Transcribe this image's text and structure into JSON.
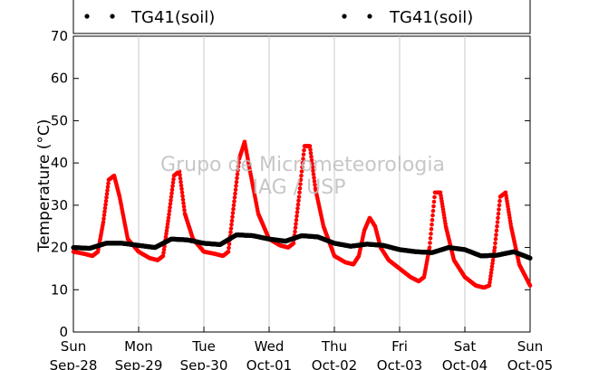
{
  "chart_data": {
    "type": "scatter",
    "ylabel": "Temperature (°C)",
    "ylim": [
      0,
      70
    ],
    "yticks": [
      0,
      10,
      20,
      30,
      40,
      50,
      60,
      70
    ],
    "xlim": [
      "2014-09-28T00:00",
      "2014-10-05T00:00"
    ],
    "xticks": [
      {
        "day": "Sun",
        "date": "Sep-28"
      },
      {
        "day": "Mon",
        "date": "Sep-29"
      },
      {
        "day": "Tue",
        "date": "Sep-30"
      },
      {
        "day": "Wed",
        "date": "Oct-01"
      },
      {
        "day": "Thu",
        "date": "Oct-02"
      },
      {
        "day": "Fri",
        "date": "Oct-03"
      },
      {
        "day": "Sat",
        "date": "Oct-04"
      },
      {
        "day": "Sun",
        "date": "Oct-05"
      }
    ],
    "grid": "vertical",
    "legend": [
      {
        "label": "TG41(soil)",
        "color": "#000000"
      },
      {
        "label": "TG41(soil)",
        "color": "#000000"
      }
    ],
    "watermark": [
      "Grupo de Micrometeorologia",
      "IAG / USP"
    ],
    "series": [
      {
        "color": "#ff0000",
        "x": [
          "2014-09-28T00:00",
          "2014-09-28T04:00",
          "2014-09-28T07:00",
          "2014-09-28T09:00",
          "2014-09-28T11:00",
          "2014-09-28T13:00",
          "2014-09-28T15:00",
          "2014-09-28T17:00",
          "2014-09-28T20:00",
          "2014-09-29T00:00",
          "2014-09-29T04:00",
          "2014-09-29T07:00",
          "2014-09-29T09:00",
          "2014-09-29T11:00",
          "2014-09-29T13:00",
          "2014-09-29T15:00",
          "2014-09-29T17:00",
          "2014-09-29T20:00",
          "2014-09-30T00:00",
          "2014-09-30T04:00",
          "2014-09-30T07:00",
          "2014-09-30T09:00",
          "2014-09-30T11:00",
          "2014-09-30T13:00",
          "2014-09-30T15:00",
          "2014-09-30T17:00",
          "2014-09-30T20:00",
          "2014-10-01T00:00",
          "2014-10-01T04:00",
          "2014-10-01T07:00",
          "2014-10-01T09:00",
          "2014-10-01T11:00",
          "2014-10-01T13:00",
          "2014-10-01T15:00",
          "2014-10-01T17:00",
          "2014-10-01T20:00",
          "2014-10-02T00:00",
          "2014-10-02T04:00",
          "2014-10-02T07:00",
          "2014-10-02T09:00",
          "2014-10-02T11:00",
          "2014-10-02T13:00",
          "2014-10-02T15:00",
          "2014-10-02T17:00",
          "2014-10-02T20:00",
          "2014-10-03T00:00",
          "2014-10-03T04:00",
          "2014-10-03T07:00",
          "2014-10-03T09:00",
          "2014-10-03T11:00",
          "2014-10-03T13:00",
          "2014-10-03T15:00",
          "2014-10-03T17:00",
          "2014-10-03T20:00",
          "2014-10-04T00:00",
          "2014-10-04T04:00",
          "2014-10-04T07:00",
          "2014-10-04T09:00",
          "2014-10-04T11:00",
          "2014-10-04T13:00",
          "2014-10-04T15:00",
          "2014-10-04T17:00",
          "2014-10-04T20:00",
          "2014-10-05T00:00"
        ],
        "y": [
          19,
          18.5,
          18,
          19,
          26,
          36,
          37,
          32,
          22,
          19,
          17.5,
          17,
          18,
          27,
          37,
          38,
          28,
          22,
          19,
          18.5,
          18,
          19,
          30,
          41,
          45,
          38,
          28,
          22,
          20.5,
          20,
          21,
          32,
          44,
          44,
          34,
          25,
          18,
          16.5,
          16,
          18,
          24,
          27,
          25,
          20,
          17,
          15,
          13,
          12,
          13,
          20,
          33,
          33,
          25,
          17,
          13,
          11,
          10.5,
          11,
          20,
          32,
          33,
          25,
          16,
          11
        ]
      },
      {
        "color": "#000000",
        "x": [
          "2014-09-28T00:00",
          "2014-09-28T06:00",
          "2014-09-28T12:00",
          "2014-09-28T18:00",
          "2014-09-29T00:00",
          "2014-09-29T06:00",
          "2014-09-29T12:00",
          "2014-09-29T18:00",
          "2014-09-30T00:00",
          "2014-09-30T06:00",
          "2014-09-30T12:00",
          "2014-09-30T18:00",
          "2014-10-01T00:00",
          "2014-10-01T06:00",
          "2014-10-01T12:00",
          "2014-10-01T18:00",
          "2014-10-02T00:00",
          "2014-10-02T06:00",
          "2014-10-02T12:00",
          "2014-10-02T18:00",
          "2014-10-03T00:00",
          "2014-10-03T06:00",
          "2014-10-03T12:00",
          "2014-10-03T18:00",
          "2014-10-04T00:00",
          "2014-10-04T06:00",
          "2014-10-04T12:00",
          "2014-10-04T18:00",
          "2014-10-05T00:00"
        ],
        "y": [
          20,
          19.8,
          21,
          21,
          20.5,
          20,
          22,
          21.8,
          21,
          20.7,
          23,
          22.8,
          22,
          21.5,
          22.8,
          22.5,
          21,
          20.3,
          20.8,
          20.5,
          19.5,
          19,
          18.8,
          20,
          19.5,
          18,
          18.2,
          19,
          17.5
        ]
      }
    ]
  }
}
